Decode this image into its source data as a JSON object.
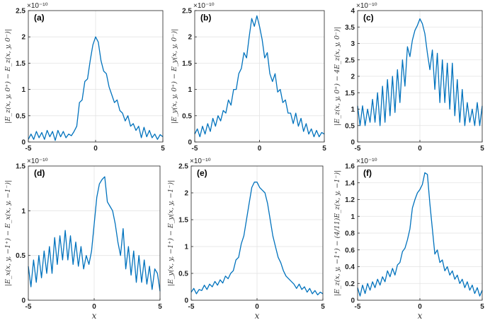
{
  "chart_data": [
    {
      "type": "line",
      "label": "(a)",
      "ylabel": "|E_z(x, y, 0⁺) − E_z(x, y, 0⁻)|",
      "xlabel": "",
      "exponent_label": "×10⁻¹⁰",
      "xlim": [
        -5,
        5
      ],
      "ylim": [
        0,
        2.5
      ],
      "xticks": [
        "-5",
        "0",
        "5"
      ],
      "yticks": [
        "0",
        "0.5",
        "1",
        "1.5",
        "2",
        "2.5"
      ],
      "ytick_values": [
        0,
        0.5,
        1,
        1.5,
        2,
        2.5
      ],
      "grid": true,
      "color": "#0072BD",
      "x": [
        -5,
        -4.8,
        -4.6,
        -4.4,
        -4.2,
        -4.0,
        -3.8,
        -3.6,
        -3.4,
        -3.2,
        -3.0,
        -2.8,
        -2.6,
        -2.4,
        -2.2,
        -2.0,
        -1.8,
        -1.6,
        -1.4,
        -1.2,
        -1.0,
        -0.8,
        -0.6,
        -0.4,
        -0.2,
        0.0,
        0.2,
        0.4,
        0.6,
        0.8,
        1.0,
        1.2,
        1.4,
        1.6,
        1.8,
        2.0,
        2.2,
        2.4,
        2.6,
        2.8,
        3.0,
        3.2,
        3.4,
        3.6,
        3.8,
        4.0,
        4.2,
        4.4,
        4.6,
        4.8,
        5.0
      ],
      "y": [
        0.05,
        0.15,
        0.05,
        0.2,
        0.08,
        0.18,
        0.05,
        0.22,
        0.1,
        0.2,
        0.03,
        0.22,
        0.1,
        0.2,
        0.08,
        0.15,
        0.12,
        0.2,
        0.3,
        0.75,
        0.8,
        1.15,
        1.2,
        1.55,
        1.85,
        2.0,
        1.9,
        1.55,
        1.35,
        1.3,
        1.05,
        0.9,
        0.75,
        0.8,
        0.6,
        0.55,
        0.4,
        0.5,
        0.3,
        0.35,
        0.22,
        0.3,
        0.08,
        0.28,
        0.1,
        0.22,
        0.08,
        0.15,
        0.05,
        0.14,
        0.1
      ]
    },
    {
      "type": "line",
      "label": "(b)",
      "ylabel": "|E_y(x, y, 0⁺) − E_y(x, y, 0⁻)|",
      "xlabel": "",
      "exponent_label": "×10⁻¹⁰",
      "xlim": [
        -5,
        5
      ],
      "ylim": [
        0,
        2.5
      ],
      "xticks": [
        "-5",
        "0",
        "5"
      ],
      "yticks": [
        "0",
        "0.5",
        "1",
        "1.5",
        "2",
        "2.5"
      ],
      "ytick_values": [
        0,
        0.5,
        1,
        1.5,
        2,
        2.5
      ],
      "grid": true,
      "color": "#0072BD",
      "x": [
        -5,
        -4.8,
        -4.6,
        -4.4,
        -4.2,
        -4.0,
        -3.8,
        -3.6,
        -3.4,
        -3.2,
        -3.0,
        -2.8,
        -2.6,
        -2.4,
        -2.2,
        -2.0,
        -1.8,
        -1.6,
        -1.4,
        -1.2,
        -1.0,
        -0.8,
        -0.6,
        -0.4,
        -0.2,
        0.0,
        0.2,
        0.4,
        0.6,
        0.8,
        1.0,
        1.2,
        1.4,
        1.6,
        1.8,
        2.0,
        2.2,
        2.4,
        2.6,
        2.8,
        3.0,
        3.2,
        3.4,
        3.6,
        3.8,
        4.0,
        4.2,
        4.4,
        4.6,
        4.8,
        5.0
      ],
      "y": [
        0.15,
        0.25,
        0.1,
        0.3,
        0.15,
        0.35,
        0.2,
        0.45,
        0.3,
        0.5,
        0.4,
        0.6,
        0.55,
        0.8,
        0.7,
        1.0,
        1.0,
        1.3,
        1.4,
        1.7,
        1.6,
        2.0,
        2.35,
        2.2,
        2.4,
        2.2,
        1.95,
        1.6,
        1.7,
        1.3,
        1.15,
        1.3,
        0.95,
        1.0,
        0.75,
        0.8,
        0.55,
        0.55,
        0.35,
        0.55,
        0.3,
        0.45,
        0.2,
        0.35,
        0.15,
        0.25,
        0.1,
        0.22,
        0.1,
        0.18,
        0.15
      ]
    },
    {
      "type": "line",
      "label": "(c)",
      "ylabel": "|E_z(x, y, 0⁺) − 4E_z(x, y, 0⁻)|",
      "xlabel": "",
      "exponent_label": "×10⁻¹⁰",
      "xlim": [
        -5,
        5
      ],
      "ylim": [
        0,
        4
      ],
      "xticks": [
        "-5",
        "0",
        "5"
      ],
      "yticks": [
        "0",
        "0.5",
        "1",
        "1.5",
        "2",
        "2.5",
        "3",
        "3.5",
        "4"
      ],
      "ytick_values": [
        0,
        0.5,
        1,
        1.5,
        2,
        2.5,
        3,
        3.5,
        4
      ],
      "grid": true,
      "color": "#0072BD",
      "x": [
        -5,
        -4.8,
        -4.6,
        -4.4,
        -4.2,
        -4.0,
        -3.8,
        -3.6,
        -3.4,
        -3.2,
        -3.0,
        -2.8,
        -2.6,
        -2.4,
        -2.2,
        -2.0,
        -1.8,
        -1.6,
        -1.4,
        -1.2,
        -1.0,
        -0.8,
        -0.6,
        -0.4,
        -0.2,
        0.0,
        0.2,
        0.4,
        0.6,
        0.8,
        1.0,
        1.2,
        1.4,
        1.6,
        1.8,
        2.0,
        2.2,
        2.4,
        2.6,
        2.8,
        3.0,
        3.2,
        3.4,
        3.6,
        3.8,
        4.0,
        4.2,
        4.4,
        4.6,
        4.8,
        5.0
      ],
      "y": [
        1.1,
        0.5,
        1.1,
        0.5,
        1.0,
        0.6,
        1.3,
        0.6,
        1.5,
        0.5,
        1.7,
        0.6,
        1.9,
        0.8,
        2.0,
        0.9,
        2.2,
        1.2,
        2.5,
        1.7,
        2.9,
        2.6,
        3.1,
        3.4,
        3.55,
        3.75,
        3.6,
        3.3,
        2.7,
        2.2,
        2.8,
        1.6,
        2.7,
        1.2,
        2.5,
        1.2,
        2.4,
        1.0,
        2.4,
        0.8,
        1.9,
        0.6,
        1.6,
        0.5,
        1.2,
        0.6,
        1.0,
        0.5,
        1.2,
        0.5,
        1.1
      ]
    },
    {
      "type": "line",
      "label": "(d)",
      "ylabel": "|E_x(x, y, −1⁺) − E_x(x, y, −1⁻)|",
      "xlabel": "x",
      "exponent_label": "×10⁻¹⁰",
      "xlim": [
        -5,
        5
      ],
      "ylim": [
        0,
        1.5
      ],
      "xticks": [
        "-5",
        "0",
        "5"
      ],
      "yticks": [
        "0",
        "0.5",
        "1",
        "1.5"
      ],
      "ytick_values": [
        0,
        0.5,
        1,
        1.5
      ],
      "grid": true,
      "color": "#0072BD",
      "x": [
        -5,
        -4.8,
        -4.6,
        -4.4,
        -4.2,
        -4.0,
        -3.8,
        -3.6,
        -3.4,
        -3.2,
        -3.0,
        -2.8,
        -2.6,
        -2.4,
        -2.2,
        -2.0,
        -1.8,
        -1.6,
        -1.4,
        -1.2,
        -1.0,
        -0.8,
        -0.6,
        -0.4,
        -0.2,
        0.0,
        0.2,
        0.4,
        0.6,
        0.8,
        1.0,
        1.2,
        1.4,
        1.6,
        1.8,
        2.0,
        2.2,
        2.4,
        2.6,
        2.8,
        3.0,
        3.2,
        3.4,
        3.6,
        3.8,
        4.0,
        4.2,
        4.4,
        4.6,
        4.8,
        5.0
      ],
      "y": [
        0.38,
        0.15,
        0.45,
        0.2,
        0.5,
        0.25,
        0.55,
        0.3,
        0.6,
        0.3,
        0.7,
        0.4,
        0.72,
        0.45,
        0.78,
        0.45,
        0.72,
        0.4,
        0.65,
        0.38,
        0.6,
        0.35,
        0.5,
        0.4,
        0.55,
        0.85,
        1.15,
        1.3,
        1.35,
        1.38,
        1.1,
        1.05,
        1.0,
        0.85,
        0.65,
        0.5,
        0.8,
        0.35,
        0.6,
        0.28,
        0.55,
        0.2,
        0.5,
        0.2,
        0.45,
        0.18,
        0.38,
        0.12,
        0.35,
        0.3,
        0.1
      ]
    },
    {
      "type": "line",
      "label": "(e)",
      "ylabel": "|E_y(x, y, −1⁺) − E_y(x, y, −1⁻)|",
      "xlabel": "x",
      "exponent_label": "×10⁻¹⁰",
      "xlim": [
        -5,
        5
      ],
      "ylim": [
        0,
        2.5
      ],
      "xticks": [
        "-5",
        "0",
        "5"
      ],
      "yticks": [
        "0",
        "0.5",
        "1",
        "1.5",
        "2",
        "2.5"
      ],
      "ytick_values": [
        0,
        0.5,
        1,
        1.5,
        2,
        2.5
      ],
      "grid": true,
      "color": "#0072BD",
      "x": [
        -5,
        -4.8,
        -4.6,
        -4.4,
        -4.2,
        -4.0,
        -3.8,
        -3.6,
        -3.4,
        -3.2,
        -3.0,
        -2.8,
        -2.6,
        -2.4,
        -2.2,
        -2.0,
        -1.8,
        -1.6,
        -1.4,
        -1.2,
        -1.0,
        -0.8,
        -0.6,
        -0.4,
        -0.2,
        0.0,
        0.2,
        0.4,
        0.6,
        0.8,
        1.0,
        1.2,
        1.4,
        1.6,
        1.8,
        2.0,
        2.2,
        2.4,
        2.6,
        2.8,
        3.0,
        3.2,
        3.4,
        3.6,
        3.8,
        4.0,
        4.2,
        4.4,
        4.6,
        4.8,
        5.0
      ],
      "y": [
        0.15,
        0.22,
        0.12,
        0.2,
        0.18,
        0.28,
        0.2,
        0.3,
        0.25,
        0.35,
        0.28,
        0.38,
        0.32,
        0.45,
        0.4,
        0.5,
        0.55,
        0.75,
        0.8,
        1.05,
        1.2,
        1.5,
        1.8,
        2.1,
        2.2,
        2.2,
        2.1,
        2.05,
        2.0,
        1.8,
        1.5,
        1.2,
        1.0,
        0.8,
        0.7,
        0.55,
        0.45,
        0.4,
        0.35,
        0.3,
        0.22,
        0.3,
        0.2,
        0.25,
        0.15,
        0.22,
        0.12,
        0.18,
        0.1,
        0.15,
        0.12
      ]
    },
    {
      "type": "line",
      "label": "(f)",
      "ylabel": "|E_z(x, y, −1⁺) − (4/11)E_z(x, y, −1⁻)|",
      "xlabel": "x",
      "exponent_label": "×10⁻¹⁰",
      "xlim": [
        -5,
        5
      ],
      "ylim": [
        0,
        1.6
      ],
      "xticks": [
        "-5",
        "0",
        "5"
      ],
      "yticks": [
        "0",
        "0.2",
        "0.4",
        "0.6",
        "0.8",
        "1",
        "1.2",
        "1.4",
        "1.6"
      ],
      "ytick_values": [
        0,
        0.2,
        0.4,
        0.6,
        0.8,
        1,
        1.2,
        1.4,
        1.6
      ],
      "grid": true,
      "color": "#0072BD",
      "x": [
        -5,
        -4.8,
        -4.6,
        -4.4,
        -4.2,
        -4.0,
        -3.8,
        -3.6,
        -3.4,
        -3.2,
        -3.0,
        -2.8,
        -2.6,
        -2.4,
        -2.2,
        -2.0,
        -1.8,
        -1.6,
        -1.4,
        -1.2,
        -1.0,
        -0.8,
        -0.6,
        -0.4,
        -0.2,
        0.0,
        0.2,
        0.4,
        0.6,
        0.8,
        1.0,
        1.2,
        1.4,
        1.6,
        1.8,
        2.0,
        2.2,
        2.4,
        2.6,
        2.8,
        3.0,
        3.2,
        3.4,
        3.6,
        3.8,
        4.0,
        4.2,
        4.4,
        4.6,
        4.8,
        5.0
      ],
      "y": [
        0.15,
        0.05,
        0.18,
        0.08,
        0.2,
        0.12,
        0.22,
        0.15,
        0.25,
        0.18,
        0.28,
        0.22,
        0.35,
        0.28,
        0.38,
        0.3,
        0.42,
        0.45,
        0.58,
        0.62,
        0.72,
        0.85,
        1.1,
        1.2,
        1.28,
        1.32,
        1.38,
        1.52,
        1.5,
        1.15,
        0.85,
        0.55,
        0.6,
        0.45,
        0.48,
        0.35,
        0.4,
        0.3,
        0.35,
        0.25,
        0.3,
        0.2,
        0.25,
        0.15,
        0.22,
        0.12,
        0.18,
        0.08,
        0.15,
        0.05,
        0.12
      ]
    }
  ]
}
